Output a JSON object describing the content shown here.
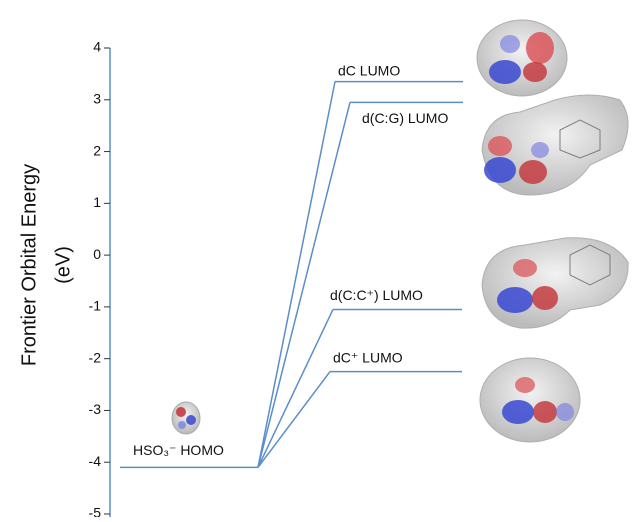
{
  "chart_data": {
    "type": "energy-level",
    "ylabel": [
      "Frontier Orbital Energy",
      "(eV)"
    ],
    "ylim": [
      -5,
      4
    ],
    "yticks": [
      -5,
      -4,
      -3,
      -2,
      -1,
      0,
      1,
      2,
      3,
      4
    ],
    "color": "#5b8ec9",
    "donor": {
      "name": "HSO₃⁻ HOMO",
      "value": -4.1
    },
    "acceptors": [
      {
        "name": "dC LUMO",
        "value": 3.35
      },
      {
        "name": "d(C:G) LUMO",
        "value": 2.95
      },
      {
        "name": "d(C:C⁺) LUMO",
        "value": -1.05
      },
      {
        "name": "dC⁺ LUMO",
        "value": -2.25
      }
    ]
  }
}
